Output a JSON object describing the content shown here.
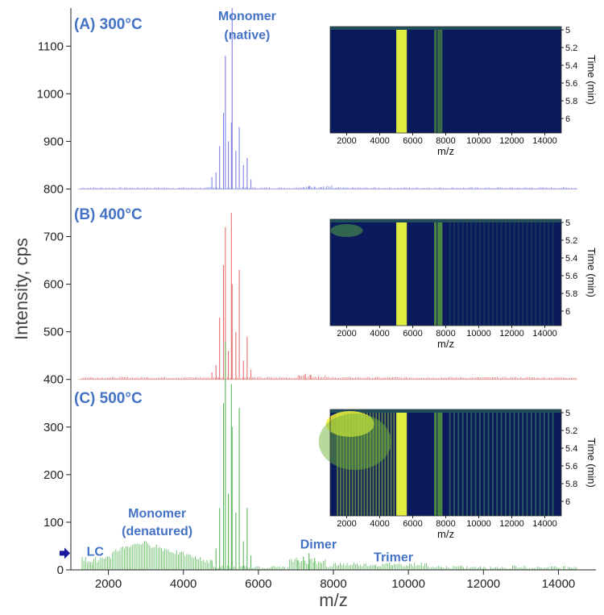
{
  "chart_data": {
    "type": "line",
    "xlabel": "m/z",
    "ylabel": "Intensity, cps",
    "xlim": [
      1000,
      15000
    ],
    "ylim": [
      0,
      1180
    ],
    "x_ticks": [
      2000,
      4000,
      6000,
      8000,
      10000,
      12000,
      14000
    ],
    "y_ticks": [
      0,
      100,
      200,
      300,
      400,
      500,
      600,
      700,
      800,
      900,
      1000,
      1100
    ],
    "panels": [
      {
        "label": "(A) 300°C",
        "color": "#8080e8",
        "baseline": 800,
        "annotations": [
          {
            "text": "Monomer",
            "x": 5700,
            "y": 1155
          },
          {
            "text": "(native)",
            "x": 5700,
            "y": 1115
          }
        ],
        "peaks": [
          {
            "x": 4760,
            "y": 825
          },
          {
            "x": 4870,
            "y": 835
          },
          {
            "x": 4965,
            "y": 890
          },
          {
            "x": 5070,
            "y": 960
          },
          {
            "x": 5120,
            "y": 1080
          },
          {
            "x": 5200,
            "y": 900
          },
          {
            "x": 5280,
            "y": 940
          },
          {
            "x": 5300,
            "y": 1180
          },
          {
            "x": 5400,
            "y": 880
          },
          {
            "x": 5490,
            "y": 930
          },
          {
            "x": 5600,
            "y": 850
          },
          {
            "x": 5700,
            "y": 865
          },
          {
            "x": 5800,
            "y": 820
          },
          {
            "x": 7200,
            "y": 804
          },
          {
            "x": 7350,
            "y": 806
          },
          {
            "x": 7500,
            "y": 805
          }
        ],
        "inset": {
          "xlabel": "m/z",
          "ylabel": "Time (min)",
          "x_ticks": [
            2000,
            4000,
            6000,
            8000,
            10000,
            12000,
            14000
          ],
          "y_ticks": [
            "5",
            "5.2",
            "5.4",
            "5.6",
            "5.8",
            "6"
          ]
        }
      },
      {
        "label": "(B) 400°C",
        "color": "#e87070",
        "baseline": 400,
        "annotations": [],
        "peaks": [
          {
            "x": 4760,
            "y": 415
          },
          {
            "x": 4870,
            "y": 430
          },
          {
            "x": 4965,
            "y": 530
          },
          {
            "x": 5070,
            "y": 640
          },
          {
            "x": 5120,
            "y": 720
          },
          {
            "x": 5200,
            "y": 460
          },
          {
            "x": 5280,
            "y": 750
          },
          {
            "x": 5300,
            "y": 600
          },
          {
            "x": 5400,
            "y": 500
          },
          {
            "x": 5490,
            "y": 630
          },
          {
            "x": 5600,
            "y": 440
          },
          {
            "x": 5700,
            "y": 490
          },
          {
            "x": 5800,
            "y": 420
          },
          {
            "x": 7100,
            "y": 408
          },
          {
            "x": 7250,
            "y": 412
          },
          {
            "x": 7400,
            "y": 410
          }
        ],
        "inset": {
          "xlabel": "m/z",
          "ylabel": "Time (min)",
          "x_ticks": [
            2000,
            4000,
            6000,
            8000,
            10000,
            12000,
            14000
          ],
          "y_ticks": [
            "5",
            "5.2",
            "5.4",
            "5.6",
            "5.8",
            "6"
          ]
        }
      },
      {
        "label": "(C) 500°C",
        "color": "#5cb85c",
        "baseline": 0,
        "annotations": [
          {
            "text": "LC",
            "x": 1650,
            "y": 30
          },
          {
            "text": "Monomer",
            "x": 3300,
            "y": 110
          },
          {
            "text": "(denatured)",
            "x": 3300,
            "y": 73
          },
          {
            "text": "Dimer",
            "x": 7600,
            "y": 45
          },
          {
            "text": "Trimer",
            "x": 9600,
            "y": 18
          }
        ],
        "peaks": [
          {
            "x": 4760,
            "y": 20
          },
          {
            "x": 4870,
            "y": 45
          },
          {
            "x": 4965,
            "y": 130
          },
          {
            "x": 5070,
            "y": 350
          },
          {
            "x": 5120,
            "y": 480
          },
          {
            "x": 5200,
            "y": 160
          },
          {
            "x": 5280,
            "y": 390
          },
          {
            "x": 5300,
            "y": 300
          },
          {
            "x": 5400,
            "y": 120
          },
          {
            "x": 5490,
            "y": 340
          },
          {
            "x": 5600,
            "y": 60
          },
          {
            "x": 5700,
            "y": 130
          },
          {
            "x": 5800,
            "y": 30
          },
          {
            "x": 7050,
            "y": 20
          },
          {
            "x": 7200,
            "y": 28
          },
          {
            "x": 7350,
            "y": 35
          },
          {
            "x": 7500,
            "y": 25
          }
        ],
        "inset": {
          "xlabel": "m/z",
          "ylabel": "Time (min)",
          "x_ticks": [
            2000,
            4000,
            6000,
            8000,
            10000,
            12000,
            14000
          ],
          "y_ticks": [
            "5",
            "5.2",
            "5.4",
            "5.6",
            "5.8",
            "6"
          ]
        }
      }
    ],
    "lc_marker": {
      "x": 1000,
      "y": 35,
      "color": "#1a1aa0"
    }
  }
}
